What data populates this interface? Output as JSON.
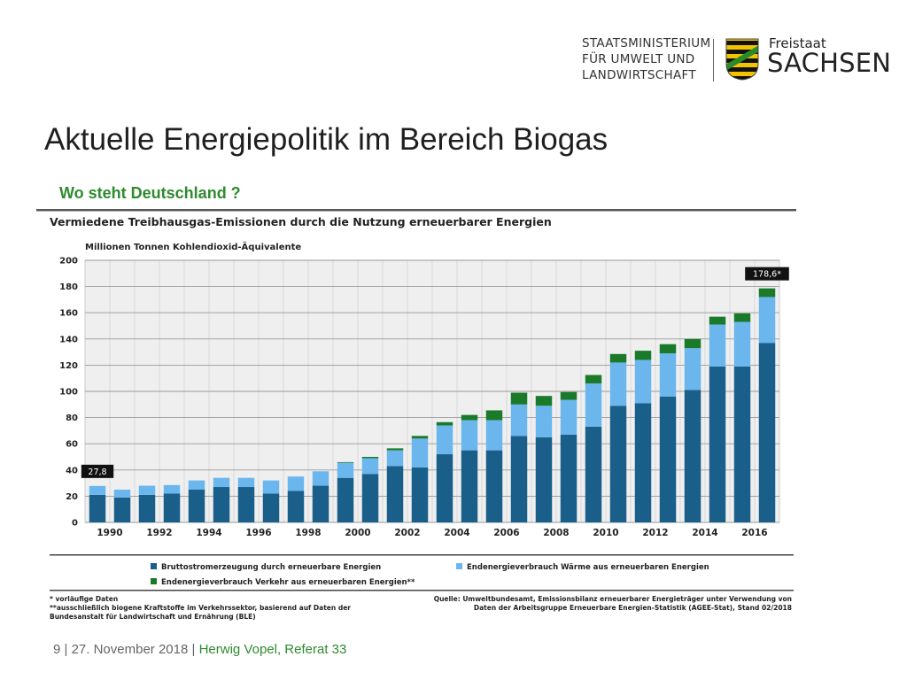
{
  "header": {
    "ministry_lines": [
      "STAATSMINISTERIUM",
      "FÜR UMWELT UND",
      "LANDWIRTSCHAFT"
    ],
    "freistaat": "Freistaat",
    "sachsen": "SACHSEN"
  },
  "slide": {
    "title": "Aktuelle Energiepolitik im Bereich Biogas",
    "subtitle": "Wo steht Deutschland ?"
  },
  "chart_data": {
    "type": "bar",
    "stacked": true,
    "title": "Vermiedene Treibhausgas-Emissionen durch die Nutzung erneuerbarer Energien",
    "ylabel": "Millionen Tonnen Kohlendioxid-Äquivalente",
    "ylim": [
      0,
      200
    ],
    "yticks": [
      0,
      20,
      40,
      60,
      80,
      100,
      120,
      140,
      160,
      180,
      200
    ],
    "categories": [
      "1990",
      "1991",
      "1992",
      "1993",
      "1994",
      "1995",
      "1996",
      "1997",
      "1998",
      "1999",
      "2000",
      "2001",
      "2002",
      "2003",
      "2004",
      "2005",
      "2006",
      "2007",
      "2008",
      "2009",
      "2010",
      "2011",
      "2012",
      "2013",
      "2014",
      "2015",
      "2016",
      "2017"
    ],
    "xtick_labels": [
      "1990",
      "1992",
      "1994",
      "1996",
      "1998",
      "2000",
      "2002",
      "2004",
      "2006",
      "2008",
      "2010",
      "2012",
      "2014",
      "2016"
    ],
    "series": [
      {
        "name": "Bruttostromerzeugung durch erneuerbare Energien",
        "color": "#1a5e8a",
        "values": [
          21,
          19,
          21,
          22,
          25,
          27,
          27,
          22,
          24,
          28,
          34,
          37,
          43,
          42,
          52,
          55,
          55,
          66,
          65,
          67,
          73,
          89,
          91,
          96,
          101,
          119,
          119,
          137
        ]
      },
      {
        "name": "Endenergieverbrauch Wärme aus erneuerbaren Energien",
        "color": "#6cb6ee",
        "values": [
          6.8,
          6,
          7,
          6.5,
          7,
          7,
          7,
          10,
          11,
          11,
          11.5,
          12,
          12,
          22,
          22,
          23,
          23,
          24,
          24,
          26.5,
          33,
          33,
          33,
          33,
          32,
          32,
          34,
          35
        ]
      },
      {
        "name": "Endenergieverbrauch Verkehr aus erneuerbaren Energien**",
        "color": "#1a7a2a",
        "values": [
          0,
          0,
          0,
          0,
          0,
          0,
          0,
          0,
          0,
          0,
          0.5,
          1,
          1.5,
          2,
          2.5,
          4,
          7.5,
          9,
          7.5,
          6,
          6.5,
          6.5,
          7,
          7,
          7,
          6,
          6.5,
          6.6
        ]
      }
    ],
    "annotations": [
      {
        "category": "1990",
        "text": "27,8"
      },
      {
        "category": "2017",
        "text": "178,6*"
      }
    ],
    "grid": true,
    "legend_position": "bottom",
    "footnotes": [
      "* vorläufige Daten",
      "**ausschließlich biogene Kraftstoffe im Verkehrssektor, basierend auf Daten der",
      "Bundesanstalt für Landwirtschaft und Ernährung (BLE)"
    ],
    "source": [
      "Quelle: Umweltbundesamt, Emissionsbilanz erneuerbarer Energieträger unter Verwendung von",
      "Daten der Arbeitsgruppe Erneuerbare Energien-Statistik (AGEE-Stat), Stand 02/2018"
    ]
  },
  "footer": {
    "page": "9",
    "date": "| 27. November 2018 |",
    "author": "Herwig Vopel, Referat 33"
  },
  "colors": {
    "title_green": "#2e8b2e",
    "bar_dark_blue": "#1a5e8a",
    "bar_light_blue": "#6cb6ee",
    "bar_green": "#1a7a2a"
  }
}
